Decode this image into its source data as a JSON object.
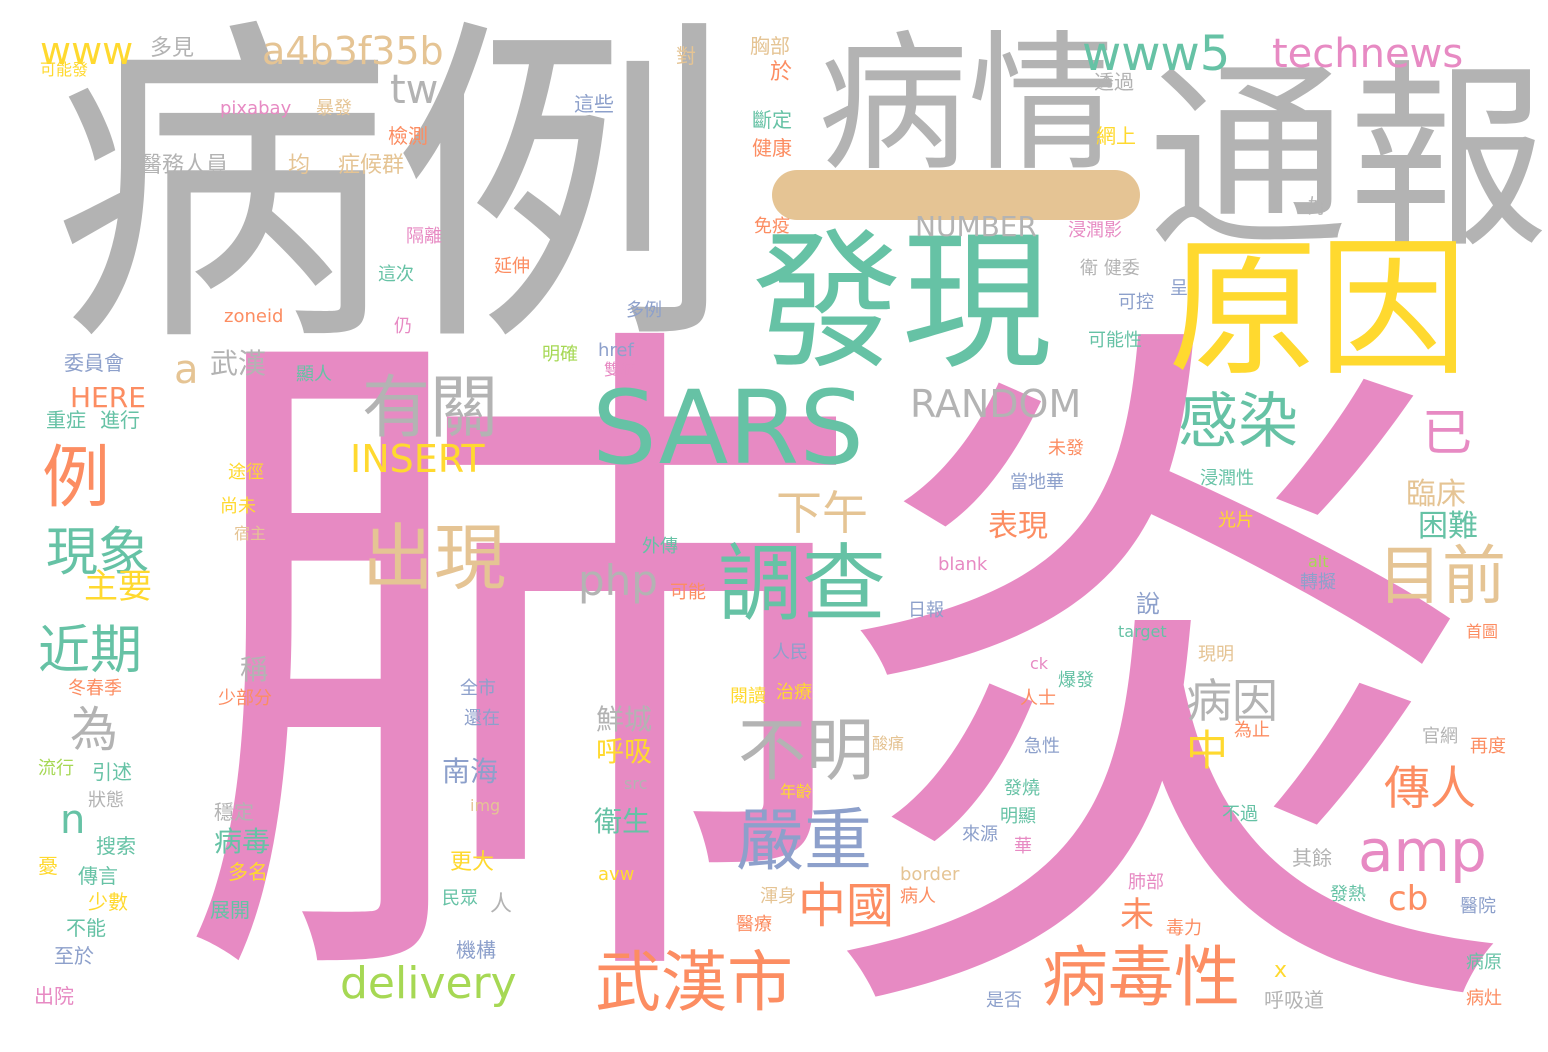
{
  "palette": {
    "pink": "#e78ac3",
    "gray": "#b3b3b3",
    "teal": "#66c2a5",
    "yellow": "#ffd92f",
    "tan": "#e5c494",
    "orange": "#fc8d62",
    "blue": "#8da0cb",
    "green": "#a6d854",
    "bar": "#e5c494"
  },
  "words": [
    {
      "text": "肺",
      "color": "pink"
    },
    {
      "text": "炎",
      "color": "pink"
    },
    {
      "text": "病例",
      "color": "gray"
    },
    {
      "text": "通報",
      "color": "gray"
    },
    {
      "text": "病情",
      "color": "gray"
    },
    {
      "text": "發現",
      "color": "teal"
    },
    {
      "text": "原因",
      "color": "yellow"
    },
    {
      "text": "SARS",
      "color": "teal"
    },
    {
      "text": "www5",
      "color": "teal"
    },
    {
      "text": "technews",
      "color": "pink"
    },
    {
      "text": "a4b3f35b",
      "color": "tan"
    },
    {
      "text": "www",
      "color": "yellow"
    },
    {
      "text": "多見",
      "color": "gray"
    },
    {
      "text": "可能發",
      "color": "yellow"
    },
    {
      "text": "tw",
      "color": "gray"
    },
    {
      "text": "有關",
      "color": "gray"
    },
    {
      "text": "出現",
      "color": "tan"
    },
    {
      "text": "調查",
      "color": "teal"
    },
    {
      "text": "目前",
      "color": "tan"
    },
    {
      "text": "感染",
      "color": "teal"
    },
    {
      "text": "已",
      "color": "pink"
    },
    {
      "text": "例",
      "color": "orange"
    },
    {
      "text": "現象",
      "color": "teal"
    },
    {
      "text": "近期",
      "color": "teal"
    },
    {
      "text": "不明",
      "color": "gray"
    },
    {
      "text": "嚴重",
      "color": "blue"
    },
    {
      "text": "amp",
      "color": "pink"
    },
    {
      "text": "武漢市",
      "color": "orange"
    },
    {
      "text": "病毒性",
      "color": "orange"
    },
    {
      "text": "中國",
      "color": "orange"
    },
    {
      "text": "delivery",
      "color": "green"
    },
    {
      "text": "RANDOM",
      "color": "gray"
    },
    {
      "text": "INSERT",
      "color": "yellow"
    },
    {
      "text": "NUMBER",
      "color": "gray"
    },
    {
      "text": "php",
      "color": "gray"
    },
    {
      "text": "下午",
      "color": "tan"
    },
    {
      "text": "病因",
      "color": "gray"
    },
    {
      "text": "傳人",
      "color": "orange"
    },
    {
      "text": "cb",
      "color": "orange"
    },
    {
      "text": "中",
      "color": "yellow"
    },
    {
      "text": "臨床",
      "color": "tan"
    },
    {
      "text": "困難",
      "color": "teal"
    },
    {
      "text": "表現",
      "color": "orange"
    },
    {
      "text": "a",
      "color": "tan"
    },
    {
      "text": "為",
      "color": "gray"
    },
    {
      "text": "n",
      "color": "teal"
    },
    {
      "text": "主要",
      "color": "yellow"
    },
    {
      "text": "HERE",
      "color": "orange"
    },
    {
      "text": "武漢",
      "color": "gray"
    },
    {
      "text": "委員會",
      "color": "blue"
    },
    {
      "text": "重症",
      "color": "teal"
    },
    {
      "text": "進行",
      "color": "teal"
    },
    {
      "text": "pixabay",
      "color": "pink"
    },
    {
      "text": "暴發",
      "color": "tan"
    },
    {
      "text": "檢測",
      "color": "orange"
    },
    {
      "text": "醫務人員",
      "color": "gray"
    },
    {
      "text": "均",
      "color": "tan"
    },
    {
      "text": "症候群",
      "color": "tan"
    },
    {
      "text": "胸部",
      "color": "tan"
    },
    {
      "text": "對",
      "color": "tan"
    },
    {
      "text": "於",
      "color": "orange"
    },
    {
      "text": "這些",
      "color": "blue"
    },
    {
      "text": "斷定",
      "color": "teal"
    },
    {
      "text": "健康",
      "color": "orange"
    },
    {
      "text": "透過",
      "color": "gray"
    },
    {
      "text": "網上",
      "color": "yellow"
    },
    {
      "text": "好",
      "color": "gray"
    },
    {
      "text": "免疫",
      "color": "orange"
    },
    {
      "text": "浸潤影",
      "color": "pink"
    },
    {
      "text": "衛 健委",
      "color": "gray"
    },
    {
      "text": "呈",
      "color": "blue"
    },
    {
      "text": "可控",
      "color": "blue"
    },
    {
      "text": "可能性",
      "color": "teal"
    },
    {
      "text": "隔離",
      "color": "pink"
    },
    {
      "text": "延伸",
      "color": "orange"
    },
    {
      "text": "這次",
      "color": "teal"
    },
    {
      "text": "多例",
      "color": "blue"
    },
    {
      "text": "zoneid",
      "color": "orange"
    },
    {
      "text": "仍",
      "color": "pink"
    },
    {
      "text": "明確",
      "color": "green"
    },
    {
      "text": "href",
      "color": "blue"
    },
    {
      "text": "雙肺",
      "color": "pink"
    },
    {
      "text": "顯人",
      "color": "teal"
    },
    {
      "text": "未發",
      "color": "orange"
    },
    {
      "text": "當地華",
      "color": "blue"
    },
    {
      "text": "浸潤性",
      "color": "teal"
    },
    {
      "text": "光片",
      "color": "yellow"
    },
    {
      "text": "途徑",
      "color": "yellow"
    },
    {
      "text": "尚未",
      "color": "yellow"
    },
    {
      "text": "宿主",
      "color": "tan"
    },
    {
      "text": "外傳",
      "color": "teal"
    },
    {
      "text": "可能",
      "color": "orange"
    },
    {
      "text": "blank",
      "color": "pink"
    },
    {
      "text": "alt",
      "color": "green"
    },
    {
      "text": "轉擬",
      "color": "blue"
    },
    {
      "text": "target",
      "color": "teal"
    },
    {
      "text": "首圖",
      "color": "orange"
    },
    {
      "text": "日報",
      "color": "blue"
    },
    {
      "text": "人民",
      "color": "blue"
    },
    {
      "text": "說",
      "color": "blue"
    },
    {
      "text": "現明",
      "color": "tan"
    },
    {
      "text": "稱",
      "color": "gray"
    },
    {
      "text": "鮮城",
      "color": "gray"
    },
    {
      "text": "呼吸",
      "color": "yellow"
    },
    {
      "text": "南海",
      "color": "blue"
    },
    {
      "text": "衛生",
      "color": "teal"
    },
    {
      "text": "全市",
      "color": "blue"
    },
    {
      "text": "還在",
      "color": "blue"
    },
    {
      "text": "src",
      "color": "gray"
    },
    {
      "text": "img",
      "color": "tan"
    },
    {
      "text": "冬春季",
      "color": "orange"
    },
    {
      "text": "少部分",
      "color": "orange"
    },
    {
      "text": "閱讀",
      "color": "yellow"
    },
    {
      "text": "治療",
      "color": "yellow"
    },
    {
      "text": "ck",
      "color": "pink"
    },
    {
      "text": "爆發",
      "color": "teal"
    },
    {
      "text": "人士",
      "color": "orange"
    },
    {
      "text": "為止",
      "color": "orange"
    },
    {
      "text": "官網",
      "color": "gray"
    },
    {
      "text": "再度",
      "color": "orange"
    },
    {
      "text": "流行",
      "color": "green"
    },
    {
      "text": "引述",
      "color": "teal"
    },
    {
      "text": "狀態",
      "color": "gray"
    },
    {
      "text": "穩定",
      "color": "gray"
    },
    {
      "text": "病毒",
      "color": "teal"
    },
    {
      "text": "多名",
      "color": "yellow"
    },
    {
      "text": "酸痛",
      "color": "tan"
    },
    {
      "text": "急性",
      "color": "blue"
    },
    {
      "text": "發燒",
      "color": "teal"
    },
    {
      "text": "明顯",
      "color": "teal"
    },
    {
      "text": "年齡",
      "color": "yellow"
    },
    {
      "text": "來源",
      "color": "blue"
    },
    {
      "text": "華",
      "color": "pink"
    },
    {
      "text": "不過",
      "color": "teal"
    },
    {
      "text": "搜索",
      "color": "teal"
    },
    {
      "text": "傳言",
      "color": "teal"
    },
    {
      "text": "少數",
      "color": "yellow"
    },
    {
      "text": "不能",
      "color": "teal"
    },
    {
      "text": "至於",
      "color": "blue"
    },
    {
      "text": "出院",
      "color": "pink"
    },
    {
      "text": "憂",
      "color": "yellow"
    },
    {
      "text": "展開",
      "color": "teal"
    },
    {
      "text": "更大",
      "color": "yellow"
    },
    {
      "text": "avw",
      "color": "yellow"
    },
    {
      "text": "border",
      "color": "tan"
    },
    {
      "text": "渾身",
      "color": "tan"
    },
    {
      "text": "病人",
      "color": "orange"
    },
    {
      "text": "醫療",
      "color": "orange"
    },
    {
      "text": "毒力",
      "color": "orange"
    },
    {
      "text": "肺部",
      "color": "pink"
    },
    {
      "text": "其餘",
      "color": "gray"
    },
    {
      "text": "發熱",
      "color": "teal"
    },
    {
      "text": "醫院",
      "color": "blue"
    },
    {
      "text": "民眾",
      "color": "teal"
    },
    {
      "text": "人",
      "color": "gray"
    },
    {
      "text": "機構",
      "color": "blue"
    },
    {
      "text": "x",
      "color": "yellow"
    },
    {
      "text": "是否",
      "color": "blue"
    },
    {
      "text": "呼吸道",
      "color": "gray"
    },
    {
      "text": "病原",
      "color": "teal"
    },
    {
      "text": "病灶",
      "color": "orange"
    },
    {
      "text": "未",
      "color": "orange"
    }
  ]
}
